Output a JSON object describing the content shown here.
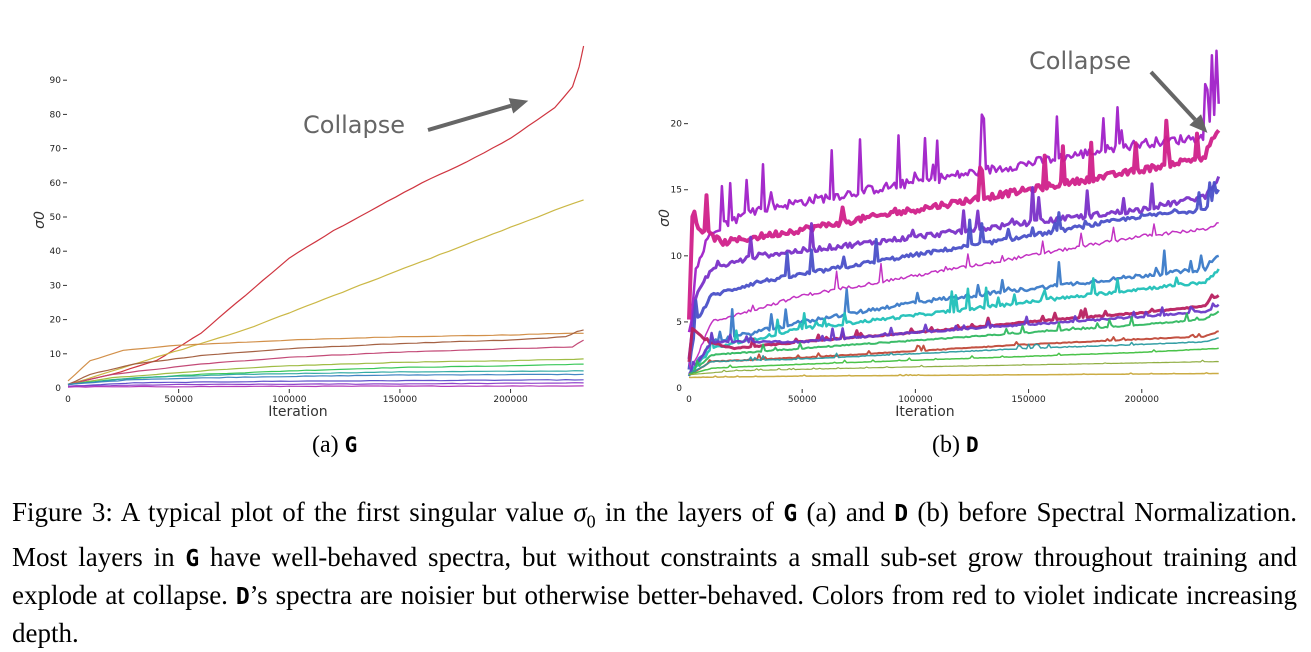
{
  "chart_data": [
    {
      "type": "line",
      "panel": "a",
      "xlabel": "Iteration",
      "ylabel": "σ0",
      "xlim": [
        0,
        235000
      ],
      "ylim": [
        0,
        100
      ],
      "xticks": [
        0,
        50000,
        100000,
        150000,
        200000
      ],
      "yticks": [
        0,
        10,
        20,
        30,
        40,
        50,
        60,
        70,
        80,
        90
      ],
      "grid": false,
      "annotation": {
        "text": "Collapse",
        "arrow_to": [
          208000,
          84
        ]
      },
      "series": [
        {
          "color": "#cc2a36",
          "points": [
            [
              0,
              1
            ],
            [
              20000,
              4
            ],
            [
              40000,
              8
            ],
            [
              60000,
              16
            ],
            [
              80000,
              27
            ],
            [
              100000,
              38
            ],
            [
              120000,
              46
            ],
            [
              140000,
              53
            ],
            [
              160000,
              60
            ],
            [
              180000,
              66
            ],
            [
              200000,
              73
            ],
            [
              220000,
              82
            ],
            [
              228000,
              88
            ],
            [
              231000,
              94
            ],
            [
              233000,
              100
            ]
          ]
        },
        {
          "color": "#c8b43c",
          "points": [
            [
              0,
              1
            ],
            [
              20000,
              5
            ],
            [
              40000,
              9
            ],
            [
              60000,
              13
            ],
            [
              80000,
              17
            ],
            [
              100000,
              22
            ],
            [
              120000,
              27
            ],
            [
              140000,
              32
            ],
            [
              160000,
              37
            ],
            [
              180000,
              42
            ],
            [
              200000,
              47
            ],
            [
              220000,
              52
            ],
            [
              233000,
              55
            ]
          ]
        },
        {
          "color": "#d08a40",
          "points": [
            [
              0,
              2
            ],
            [
              10000,
              8
            ],
            [
              25000,
              11
            ],
            [
              50000,
              12.5
            ],
            [
              100000,
              14
            ],
            [
              150000,
              15
            ],
            [
              200000,
              15.5
            ],
            [
              225000,
              16
            ],
            [
              233000,
              16
            ]
          ]
        },
        {
          "color": "#a05a3a",
          "points": [
            [
              0,
              1
            ],
            [
              10000,
              4
            ],
            [
              30000,
              7
            ],
            [
              60000,
              9.5
            ],
            [
              100000,
              11.5
            ],
            [
              150000,
              13
            ],
            [
              200000,
              14
            ],
            [
              225000,
              15
            ],
            [
              230000,
              16.5
            ],
            [
              233000,
              17
            ]
          ]
        },
        {
          "color": "#c04070",
          "points": [
            [
              0,
              1
            ],
            [
              20000,
              4
            ],
            [
              60000,
              7
            ],
            [
              100000,
              9
            ],
            [
              150000,
              10.5
            ],
            [
              200000,
              11.5
            ],
            [
              228000,
              12
            ],
            [
              233000,
              14
            ]
          ]
        },
        {
          "color": "#9ab83a",
          "points": [
            [
              0,
              1
            ],
            [
              20000,
              3
            ],
            [
              60000,
              5
            ],
            [
              100000,
              6.5
            ],
            [
              150000,
              7.5
            ],
            [
              200000,
              8
            ],
            [
              233000,
              8.5
            ]
          ]
        },
        {
          "color": "#2ec450",
          "points": [
            [
              0,
              1
            ],
            [
              20000,
              2.5
            ],
            [
              60000,
              4
            ],
            [
              100000,
              5
            ],
            [
              150000,
              6
            ],
            [
              200000,
              6.5
            ],
            [
              233000,
              7
            ]
          ]
        },
        {
          "color": "#2aa8a0",
          "points": [
            [
              0,
              1
            ],
            [
              30000,
              3
            ],
            [
              80000,
              4
            ],
            [
              150000,
              4.7
            ],
            [
              233000,
              5
            ]
          ]
        },
        {
          "color": "#3a80c0",
          "points": [
            [
              0,
              1
            ],
            [
              30000,
              2.5
            ],
            [
              80000,
              3.2
            ],
            [
              150000,
              3.8
            ],
            [
              233000,
              4
            ]
          ]
        },
        {
          "color": "#5a4ac8",
          "points": [
            [
              0,
              0.5
            ],
            [
              30000,
              1.5
            ],
            [
              100000,
              2
            ],
            [
              233000,
              2.4
            ]
          ]
        },
        {
          "color": "#8a3ac8",
          "points": [
            [
              0,
              0.5
            ],
            [
              50000,
              1
            ],
            [
              150000,
              1.2
            ],
            [
              233000,
              1.5
            ]
          ]
        },
        {
          "color": "#b030b8",
          "points": [
            [
              0,
              0.3
            ],
            [
              100000,
              0.5
            ],
            [
              233000,
              0.6
            ]
          ]
        }
      ]
    },
    {
      "type": "line",
      "panel": "b",
      "xlabel": "Iteration",
      "ylabel": "σ0",
      "xlim": [
        0,
        235000
      ],
      "ylim": [
        0,
        23
      ],
      "xticks": [
        0,
        50000,
        100000,
        150000,
        200000
      ],
      "yticks": [
        0,
        5,
        10,
        15,
        20
      ],
      "grid": false,
      "annotation": {
        "text": "Collapse",
        "arrow_to": [
          229000,
          19.3
        ]
      },
      "series": [
        {
          "color": "#a020c8",
          "noise": 1.2,
          "width": 2.5,
          "points": [
            [
              0,
              3
            ],
            [
              3000,
              9
            ],
            [
              10000,
              12
            ],
            [
              30000,
              13.5
            ],
            [
              80000,
              15
            ],
            [
              150000,
              17
            ],
            [
              200000,
              18.5
            ],
            [
              228000,
              19
            ],
            [
              230000,
              20.5
            ],
            [
              234000,
              21.5
            ]
          ]
        },
        {
          "color": "#d0208a",
          "noise": 0.8,
          "width": 4,
          "points": [
            [
              0,
              5
            ],
            [
              1500,
              13
            ],
            [
              5000,
              12
            ],
            [
              15000,
              11
            ],
            [
              50000,
              12
            ],
            [
              100000,
              13.5
            ],
            [
              150000,
              15
            ],
            [
              200000,
              16.5
            ],
            [
              228000,
              17.5
            ],
            [
              230000,
              18.5
            ],
            [
              234000,
              19.5
            ]
          ]
        },
        {
          "color": "#7a30c8",
          "noise": 0.7,
          "width": 3,
          "points": [
            [
              0,
              2
            ],
            [
              3000,
              7
            ],
            [
              10000,
              9
            ],
            [
              30000,
              10
            ],
            [
              80000,
              11
            ],
            [
              150000,
              12.5
            ],
            [
              200000,
              13.5
            ],
            [
              228000,
              14.5
            ],
            [
              230000,
              15
            ],
            [
              234000,
              16
            ]
          ]
        },
        {
          "color": "#4a50c8",
          "noise": 0.5,
          "width": 3,
          "points": [
            [
              0,
              1.5
            ],
            [
              3000,
              5
            ],
            [
              10000,
              7
            ],
            [
              30000,
              8
            ],
            [
              80000,
              9.5
            ],
            [
              150000,
              11.5
            ],
            [
              200000,
              13
            ],
            [
              228000,
              13.5
            ],
            [
              230000,
              14
            ],
            [
              234000,
              15
            ]
          ]
        },
        {
          "color": "#c028c0",
          "noise": 0.4,
          "width": 1.5,
          "points": [
            [
              0,
              1
            ],
            [
              10000,
              5
            ],
            [
              50000,
              7
            ],
            [
              100000,
              8.5
            ],
            [
              150000,
              10
            ],
            [
              200000,
              11.5
            ],
            [
              228000,
              12
            ],
            [
              234000,
              12.5
            ]
          ]
        },
        {
          "color": "#3a7ac8",
          "noise": 0.5,
          "width": 2.5,
          "points": [
            [
              0,
              1
            ],
            [
              10000,
              3.5
            ],
            [
              50000,
              5
            ],
            [
              100000,
              6.5
            ],
            [
              150000,
              7.5
            ],
            [
              200000,
              8.5
            ],
            [
              228000,
              9
            ],
            [
              230000,
              9.5
            ],
            [
              234000,
              10
            ]
          ]
        },
        {
          "color": "#20c0b8",
          "noise": 0.4,
          "width": 2.5,
          "points": [
            [
              0,
              1
            ],
            [
              10000,
              3
            ],
            [
              50000,
              4.5
            ],
            [
              100000,
              5.5
            ],
            [
              150000,
              6.5
            ],
            [
              200000,
              7.5
            ],
            [
              228000,
              8
            ],
            [
              234000,
              9
            ]
          ]
        },
        {
          "color": "#b82060",
          "noise": 0.15,
          "width": 3,
          "points": [
            [
              0,
              2
            ],
            [
              1500,
              4.5
            ],
            [
              8000,
              3.5
            ],
            [
              20000,
              3
            ],
            [
              50000,
              3.5
            ],
            [
              100000,
              4.2
            ],
            [
              150000,
              5
            ],
            [
              200000,
              5.7
            ],
            [
              228000,
              6.2
            ],
            [
              230000,
              6.7
            ],
            [
              234000,
              7
            ]
          ]
        },
        {
          "color": "#6a3ac8",
          "noise": 0.2,
          "width": 2.5,
          "points": [
            [
              0,
              1
            ],
            [
              10000,
              3.5
            ],
            [
              50000,
              3.5
            ],
            [
              100000,
              4.2
            ],
            [
              150000,
              4.8
            ],
            [
              200000,
              5.4
            ],
            [
              228000,
              5.8
            ],
            [
              234000,
              6.3
            ]
          ]
        },
        {
          "color": "#30b860",
          "noise": 0.15,
          "width": 2,
          "points": [
            [
              0,
              1
            ],
            [
              10000,
              2.5
            ],
            [
              50000,
              3
            ],
            [
              100000,
              3.6
            ],
            [
              150000,
              4.2
            ],
            [
              200000,
              4.8
            ],
            [
              228000,
              5.2
            ],
            [
              234000,
              5.8
            ]
          ]
        },
        {
          "color": "#c04838",
          "noise": 0.1,
          "width": 2,
          "points": [
            [
              0,
              1
            ],
            [
              10000,
              2
            ],
            [
              50000,
              2.3
            ],
            [
              100000,
              2.8
            ],
            [
              150000,
              3.3
            ],
            [
              200000,
              3.7
            ],
            [
              228000,
              3.9
            ],
            [
              234000,
              4.3
            ]
          ]
        },
        {
          "color": "#2a9aa0",
          "noise": 0.1,
          "width": 1.5,
          "points": [
            [
              0,
              1
            ],
            [
              10000,
              2
            ],
            [
              50000,
              2.2
            ],
            [
              100000,
              2.6
            ],
            [
              150000,
              3
            ],
            [
              200000,
              3.3
            ],
            [
              228000,
              3.5
            ],
            [
              234000,
              3.8
            ]
          ]
        },
        {
          "color": "#40c040",
          "noise": 0.05,
          "width": 1.5,
          "points": [
            [
              0,
              1
            ],
            [
              10000,
              1.5
            ],
            [
              50000,
              1.8
            ],
            [
              100000,
              2.1
            ],
            [
              150000,
              2.4
            ],
            [
              200000,
              2.7
            ],
            [
              234000,
              3
            ]
          ]
        },
        {
          "color": "#8aaa3a",
          "noise": 0.03,
          "width": 1.2,
          "points": [
            [
              0,
              1
            ],
            [
              20000,
              1.3
            ],
            [
              100000,
              1.6
            ],
            [
              200000,
              1.9
            ],
            [
              234000,
              2
            ]
          ]
        },
        {
          "color": "#c8a83a",
          "noise": 0.02,
          "width": 1.5,
          "points": [
            [
              0,
              0.8
            ],
            [
              50000,
              0.9
            ],
            [
              150000,
              1
            ],
            [
              234000,
              1.1
            ]
          ]
        }
      ]
    }
  ],
  "subcaptions": {
    "a": {
      "prefix": "(a) ",
      "letter": "G"
    },
    "b": {
      "prefix": "(b) ",
      "letter": "D"
    }
  },
  "caption": {
    "p1": "Figure 3: A typical plot of the first singular value ",
    "sigma": "σ",
    "sub": "0",
    "p2": " in the layers of ",
    "G1": "G",
    "p3": " (a) and ",
    "D1": "D",
    "p4": " (b) before Spectral Normalization.  Most layers in ",
    "G2": "G",
    "p5": " have well-behaved spectra, but without constraints a small sub-set grow throughout training and explode at collapse. ",
    "D2": "D",
    "p6": "’s spectra are noisier but otherwise better-behaved. Colors from red to violet indicate increasing depth."
  }
}
